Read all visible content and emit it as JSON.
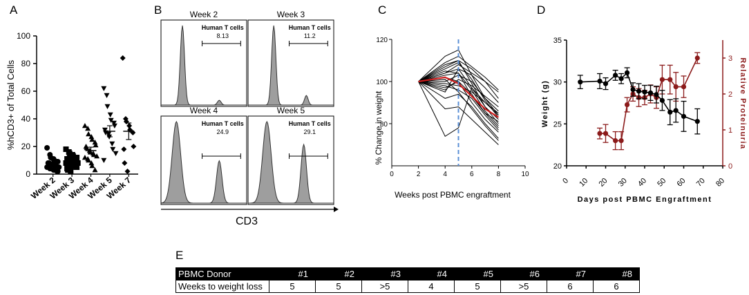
{
  "panels": {
    "A": {
      "letter": "A",
      "ylabel": "%hCD3+ of Total Cells",
      "yticks": [
        0,
        20,
        40,
        60,
        80,
        100
      ],
      "ylim": [
        0,
        100
      ],
      "categories": [
        "Week 2",
        "Week 3",
        "Week 4",
        "Week 5",
        "Week 7"
      ],
      "markers": [
        "circle",
        "square",
        "triangle",
        "triangle-down",
        "diamond"
      ],
      "means": [
        8,
        10,
        17,
        31,
        31
      ],
      "sems": [
        1.5,
        1.5,
        2.5,
        4,
        6
      ],
      "points": [
        [
          19,
          14,
          12,
          11,
          10,
          9,
          9,
          8,
          8,
          7,
          7,
          6,
          6,
          5,
          5,
          4,
          4,
          3,
          3,
          2,
          2
        ],
        [
          18,
          16,
          15,
          14,
          13,
          12,
          12,
          11,
          11,
          10,
          10,
          9,
          9,
          8,
          8,
          7,
          7,
          6,
          6,
          5,
          5,
          4,
          3,
          2
        ],
        [
          35,
          33,
          29,
          27,
          25,
          23,
          21,
          20,
          19,
          17,
          16,
          15,
          14,
          13,
          12,
          11,
          10,
          8,
          6,
          3
        ],
        [
          62,
          57,
          49,
          43,
          39,
          37,
          35,
          32,
          30,
          29,
          27,
          22,
          18,
          15,
          10
        ],
        [
          84,
          40,
          38,
          35,
          32,
          30,
          20,
          18,
          8,
          2
        ]
      ]
    },
    "B": {
      "letter": "B",
      "xlabel": "CD3",
      "gate_label": "Human T cells",
      "subpanels": [
        {
          "title": "Week 2",
          "value": "8.13"
        },
        {
          "title": "Week 3",
          "value": "11.2"
        },
        {
          "title": "Week 4",
          "value": "24.9"
        },
        {
          "title": "Week 5",
          "value": "29.1"
        }
      ]
    },
    "C": {
      "letter": "C",
      "ylabel": "% Change in weight",
      "xlabel": "Weeks post PBMC engraftment",
      "xticks": [
        0,
        2,
        4,
        6,
        8,
        10
      ],
      "yticks": [
        80,
        100,
        120
      ],
      "xlim": [
        0,
        10
      ],
      "ylim": [
        60,
        120
      ],
      "dashed_x": 5,
      "mean_line": {
        "x": [
          2,
          4,
          5,
          6,
          7,
          8
        ],
        "y": [
          100,
          102,
          99,
          93,
          87,
          83
        ]
      },
      "lines": [
        [
          100,
          107,
          110,
          106,
          100,
          92
        ],
        [
          100,
          112,
          115,
          103,
          92,
          84
        ],
        [
          100,
          95,
          106,
          97,
          88,
          80
        ],
        [
          100,
          92,
          94,
          88,
          80,
          73
        ],
        [
          100,
          87,
          88,
          82,
          76,
          70
        ],
        [
          100,
          74,
          78,
          97,
          90,
          85
        ],
        [
          100,
          104,
          108,
          104,
          100,
          95
        ],
        [
          100,
          109,
          112,
          107,
          102,
          96
        ],
        [
          100,
          100,
          103,
          100,
          92,
          86
        ],
        [
          100,
          97,
          100,
          94,
          85,
          78
        ],
        [
          100,
          102,
          100,
          90,
          82,
          76
        ],
        [
          100,
          105,
          104,
          96,
          86,
          79
        ],
        [
          100,
          98,
          96,
          92,
          84,
          77
        ],
        [
          100,
          106,
          109,
          101,
          91,
          83
        ],
        [
          100,
          103,
          104,
          93,
          85,
          81
        ],
        [
          100,
          99,
          98,
          95,
          90,
          84
        ],
        [
          100,
          108,
          110,
          99,
          88,
          82
        ],
        [
          100,
          101,
          95,
          87,
          79,
          72
        ],
        [
          100,
          104,
          106,
          103,
          97,
          90
        ],
        [
          100,
          96,
          101,
          98,
          93,
          88
        ]
      ]
    },
    "D": {
      "letter": "D",
      "ylabel_left": "Weight (g)",
      "ylabel_right": "Relative Proteinuria",
      "xlabel": "Days post PBMC Engraftment",
      "xticks": [
        0,
        10,
        20,
        30,
        40,
        50,
        60,
        70,
        80
      ],
      "yticks_left": [
        20,
        25,
        30,
        35
      ],
      "yticks_right": [
        0,
        1,
        2,
        3
      ],
      "xlim": [
        0,
        80
      ],
      "ylim_left": [
        20,
        35
      ],
      "ylim_right": [
        0,
        3.5
      ],
      "weight": {
        "x": [
          7,
          17,
          20,
          25,
          28,
          31,
          34,
          37,
          40,
          43,
          46,
          49,
          53,
          56,
          60,
          67
        ],
        "y": [
          30,
          30.1,
          29.8,
          30.8,
          30.4,
          31.1,
          29.1,
          28.9,
          28.8,
          28.7,
          28.5,
          27.8,
          26.4,
          26.6,
          25.9,
          25.3
        ],
        "err": [
          0.8,
          0.9,
          0.7,
          0.6,
          0.6,
          0.6,
          0.8,
          0.9,
          0.8,
          0.9,
          1.0,
          1.2,
          1.5,
          1.4,
          1.8,
          1.5
        ]
      },
      "proteinuria": {
        "x": [
          17,
          20,
          25,
          28,
          31,
          34,
          37,
          40,
          43,
          46,
          49,
          53,
          56,
          60,
          67
        ],
        "y": [
          0.9,
          0.9,
          0.7,
          0.7,
          1.7,
          2.0,
          1.9,
          1.9,
          2.0,
          1.9,
          2.4,
          2.4,
          2.2,
          2.2,
          3.0
        ],
        "err": [
          0.15,
          0.25,
          0.25,
          0.25,
          0.2,
          0.2,
          0.25,
          0.2,
          0.25,
          0.3,
          0.4,
          0.4,
          0.4,
          0.3,
          0.15
        ]
      }
    },
    "E": {
      "letter": "E",
      "header": [
        "PBMC Donor",
        "#1",
        "#2",
        "#3",
        "#4",
        "#5",
        "#6",
        "#7",
        "#8"
      ],
      "row": [
        "Weeks to weight loss",
        "5",
        "5",
        ">5",
        "4",
        "5",
        ">5",
        "6",
        "6"
      ]
    }
  },
  "colors": {
    "axis": "#000000",
    "red_line": "#cc1a1a",
    "proteinuria": "#8b1a1a",
    "dashed": "#5b8fd6",
    "histogram_fill": "#9e9e9e"
  },
  "chart_data": [
    {
      "type": "scatter",
      "title": "",
      "ylabel": "%hCD3+ of Total Cells",
      "categories": [
        "Week 2",
        "Week 3",
        "Week 4",
        "Week 5",
        "Week 7"
      ],
      "ylim": [
        0,
        100
      ]
    },
    {
      "type": "histogram",
      "xlabel": "CD3",
      "gates": {
        "Week 2": 8.13,
        "Week 3": 11.2,
        "Week 4": 24.9,
        "Week 5": 29.1
      }
    },
    {
      "type": "line",
      "xlabel": "Weeks post PBMC engraftment",
      "ylabel": "% Change in weight",
      "xlim": [
        0,
        10
      ],
      "ylim": [
        60,
        120
      ]
    },
    {
      "type": "line",
      "xlabel": "Days post PBMC Engraftment",
      "ylabel": "Weight (g)",
      "ylabel_right": "Relative Proteinuria",
      "xlim": [
        0,
        80
      ],
      "ylim": [
        20,
        35
      ]
    }
  ]
}
